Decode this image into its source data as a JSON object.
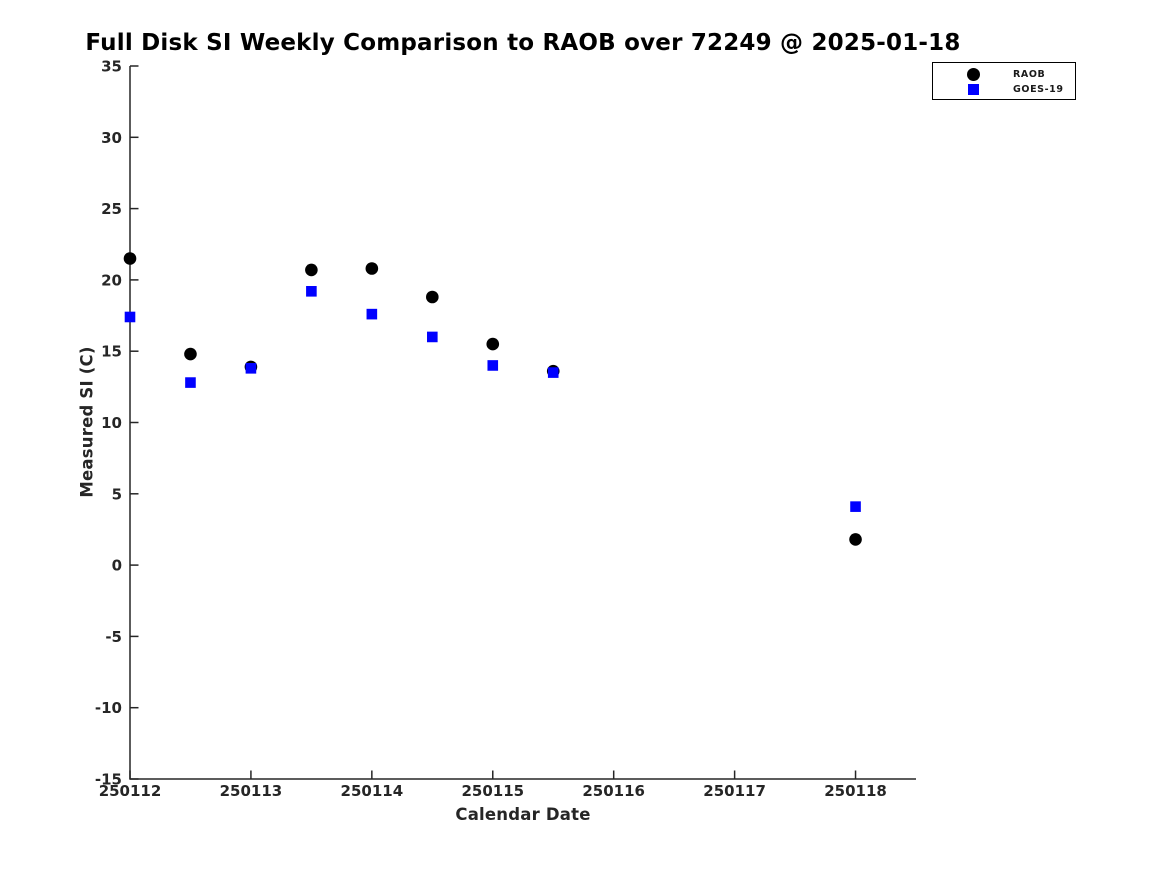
{
  "page": {
    "background": "#ffffff"
  },
  "chart_data": {
    "type": "scatter",
    "title": "Full Disk SI Weekly Comparison to RAOB over 72249 @ 2025-01-18",
    "xlabel": "Calendar Date",
    "ylabel": "Measured SI (C)",
    "xlim": [
      250112,
      250118.5
    ],
    "ylim": [
      -15,
      35
    ],
    "x_ticks": [
      250112,
      250113,
      250114,
      250115,
      250116,
      250117,
      250118
    ],
    "y_ticks": [
      -15,
      -10,
      -5,
      0,
      5,
      10,
      15,
      20,
      25,
      30,
      35
    ],
    "grid": false,
    "legend_position": "top-right",
    "axis_color": "#262626",
    "series": [
      {
        "name": "RAOB",
        "marker": "circle",
        "color": "#000000",
        "points": [
          [
            250112,
            21.5
          ],
          [
            250112.5,
            14.8
          ],
          [
            250113,
            13.9
          ],
          [
            250113.5,
            20.7
          ],
          [
            250114,
            20.8
          ],
          [
            250114.5,
            18.8
          ],
          [
            250115,
            15.5
          ],
          [
            250115.5,
            13.6
          ],
          [
            250118,
            1.8
          ]
        ]
      },
      {
        "name": "GOES-19",
        "marker": "square",
        "color": "#0000ff",
        "points": [
          [
            250112,
            17.4
          ],
          [
            250112.5,
            12.8
          ],
          [
            250113,
            13.8
          ],
          [
            250113.5,
            19.2
          ],
          [
            250114,
            17.6
          ],
          [
            250114.5,
            16.0
          ],
          [
            250115,
            14.0
          ],
          [
            250115.5,
            13.5
          ],
          [
            250118,
            4.1
          ]
        ]
      }
    ]
  }
}
